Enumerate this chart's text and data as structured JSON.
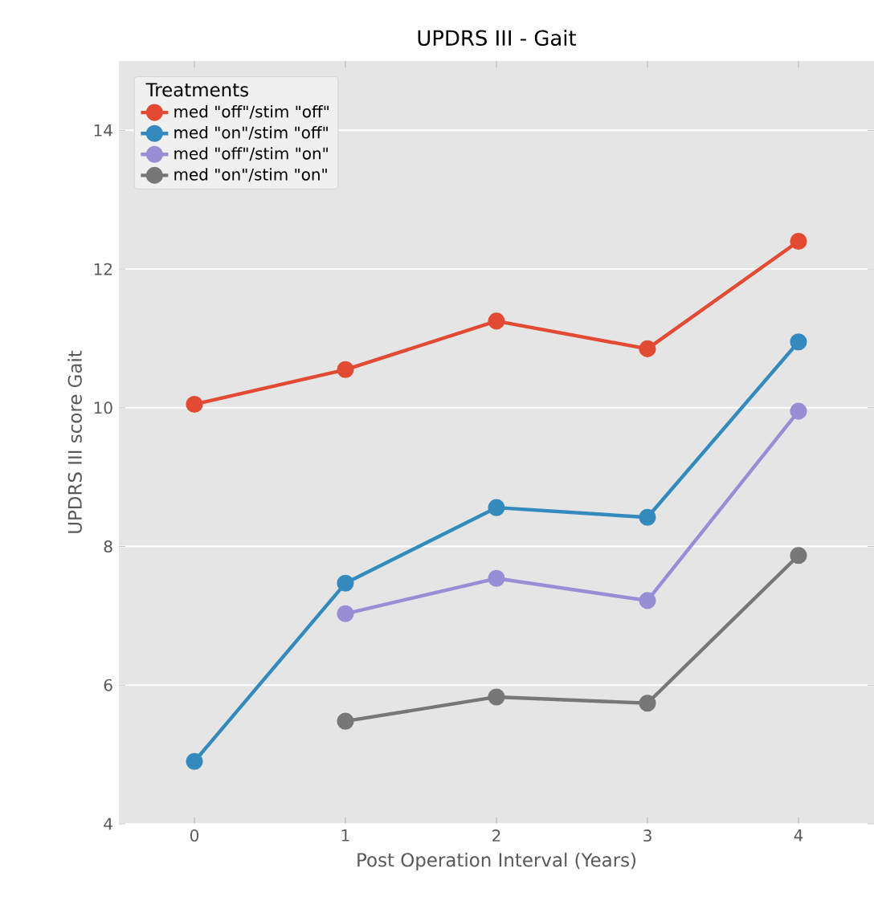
{
  "chart_data": {
    "type": "line",
    "title": "UPDRS III - Gait",
    "xlabel": "Post Operation Interval (Years)",
    "ylabel": "UPDRS III score Gait",
    "legend_title": "Treatments",
    "categories": [
      "0",
      "1",
      "2",
      "3",
      "4"
    ],
    "series": [
      {
        "name": "med \"off\"/stim \"off\"",
        "color": "#e24a33",
        "values": [
          10.05,
          10.55,
          11.25,
          10.85,
          12.4
        ]
      },
      {
        "name": "med \"on\"/stim \"off\"",
        "color": "#348abd",
        "values": [
          4.9,
          7.47,
          8.56,
          8.42,
          10.95
        ]
      },
      {
        "name": "med \"off\"/stim \"on\"",
        "color": "#988ed5",
        "values": [
          null,
          7.03,
          7.54,
          7.22,
          9.95
        ]
      },
      {
        "name": "med \"on\"/stim \"on\"",
        "color": "#777777",
        "values": [
          null,
          5.48,
          5.83,
          5.74,
          7.87
        ]
      }
    ],
    "ylim": [
      4,
      15
    ],
    "yticks": [
      4,
      6,
      8,
      10,
      12,
      14
    ],
    "grid": "y",
    "legend": "top left",
    "marker": "circle",
    "line_style": "solid"
  }
}
